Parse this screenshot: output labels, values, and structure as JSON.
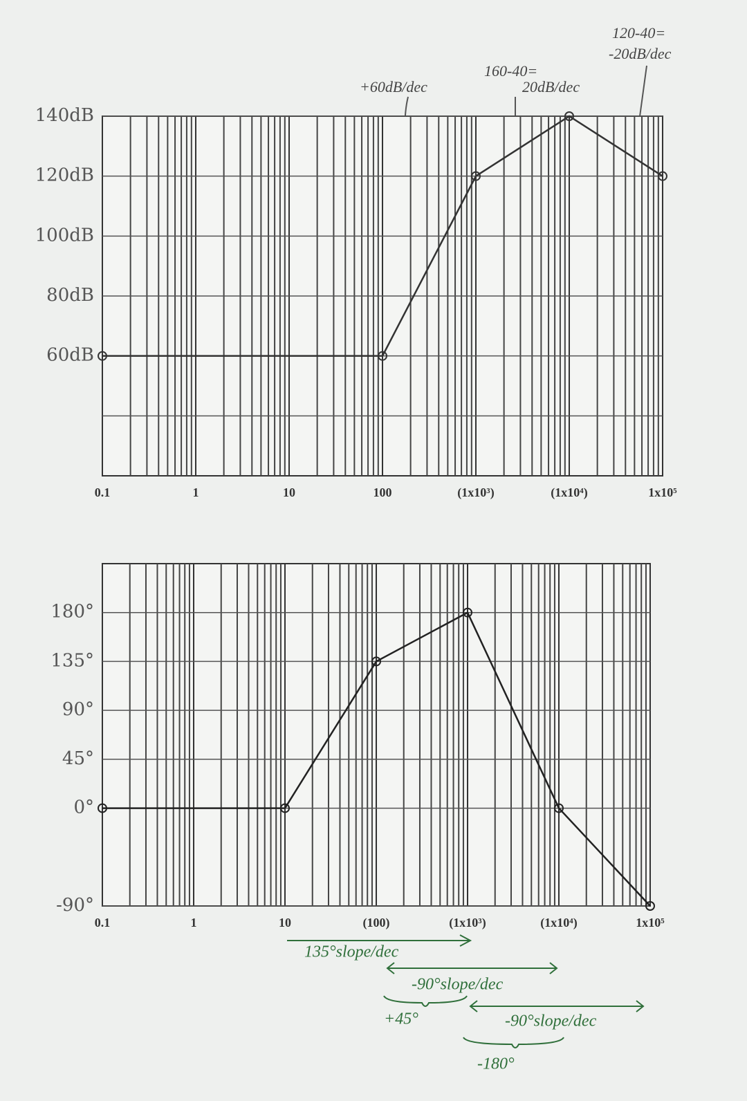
{
  "chart_data": [
    {
      "type": "line",
      "xscale": "log",
      "grid": true,
      "minor_grid": true,
      "color": "#333333",
      "x": [
        0.1,
        100,
        1000,
        10000,
        100000
      ],
      "values": [
        60,
        60,
        120,
        140,
        120
      ],
      "xlim": [
        0.1,
        100000
      ],
      "ylim": [
        20,
        140
      ],
      "xticks": [
        0.1,
        1,
        10,
        100,
        {
          "value": 1000,
          "label": "(1x10³)"
        },
        {
          "value": 10000,
          "label": "(1x10⁴)"
        },
        {
          "value": 100000,
          "label": "1x10⁵"
        }
      ],
      "yticks": [
        {
          "value": 140,
          "label": "140dB"
        },
        {
          "value": 120,
          "label": "120dB"
        },
        {
          "value": 100,
          "label": "100dB"
        },
        {
          "value": 80,
          "label": "80dB"
        },
        {
          "value": 60,
          "label": "60dB"
        }
      ],
      "ygrid": [
        40
      ],
      "annotations": [
        "+60dB/dec",
        "160-40=",
        "20dB/dec",
        "120-40=",
        "-20dB/dec"
      ]
    },
    {
      "type": "line",
      "xscale": "log",
      "grid": true,
      "minor_grid": true,
      "color": "#222222",
      "x": [
        0.1,
        10,
        100,
        1000,
        10000,
        100000
      ],
      "values": [
        0,
        0,
        135,
        180,
        0,
        -90
      ],
      "xlim": [
        0.1,
        100000
      ],
      "ylim": [
        -90,
        225
      ],
      "xticks": [
        0.1,
        1,
        10,
        {
          "value": 100,
          "label": "(100)"
        },
        {
          "value": 1000,
          "label": "(1x10³)"
        },
        {
          "value": 10000,
          "label": "(1x10⁴)"
        },
        {
          "value": 100000,
          "label": "1x10⁵"
        }
      ],
      "yticks": [
        {
          "value": 180,
          "label": "180°"
        },
        {
          "value": 135,
          "label": "135°"
        },
        {
          "value": 90,
          "label": "90°"
        },
        {
          "value": 45,
          "label": "45°"
        },
        {
          "value": 0,
          "label": "0°"
        },
        {
          "value": -90,
          "label": "-90°"
        }
      ],
      "annotations": [
        "135°slope/dec",
        "-90°slope/dec",
        "+45°",
        "-90°slope/dec",
        "-180°"
      ]
    }
  ]
}
